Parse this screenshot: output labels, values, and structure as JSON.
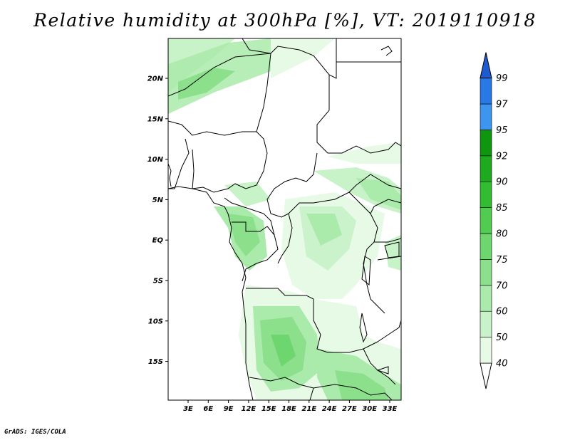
{
  "title": "Relative humidity at 300hPa [%], VT: 2019110918",
  "credit": "GrADS: IGES/COLA",
  "map": {
    "lat_ticks": [
      "20N",
      "15N",
      "10N",
      "5N",
      "EQ",
      "5S",
      "10S",
      "15S"
    ],
    "lon_ticks": [
      "3E",
      "6E",
      "9E",
      "12E",
      "15E",
      "18E",
      "21E",
      "24E",
      "27E",
      "30E",
      "33E"
    ]
  },
  "colorbar": {
    "labels": [
      "40",
      "50",
      "60",
      "70",
      "75",
      "80",
      "85",
      "90",
      "92",
      "95",
      "97",
      "99"
    ],
    "colors": [
      "#ffffff",
      "#e6fae6",
      "#c8f2c8",
      "#aaeaaa",
      "#8ce08c",
      "#6ed66e",
      "#50cc50",
      "#32bc32",
      "#1eaa1e",
      "#0f960f",
      "#3c96f0",
      "#2878e6",
      "#1e5ad2"
    ]
  }
}
